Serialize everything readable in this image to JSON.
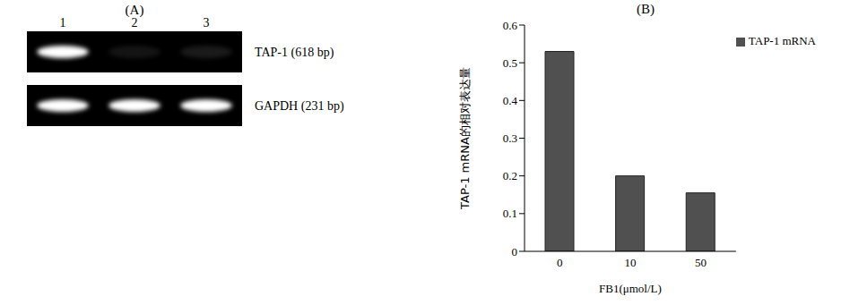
{
  "gel": {
    "title": "(A)",
    "lanes": [
      "1",
      "2",
      "3"
    ],
    "rows": [
      {
        "label": "TAP-1 (618 bp)",
        "intensity": [
          1,
          0.08,
          0.1
        ]
      },
      {
        "label": "GAPDH (231 bp)",
        "intensity": [
          1,
          1,
          1
        ]
      }
    ]
  },
  "chart_data": {
    "type": "bar",
    "title": "(B)",
    "x_label": "FB1(μmol/L)",
    "y_label": "TAP-1 mRNA的相对表达量",
    "categories": [
      "0",
      "10",
      "50"
    ],
    "series": [
      {
        "name": "TAP-1 mRNA",
        "color": "#505050",
        "values": [
          0.53,
          0.2,
          0.155
        ]
      }
    ],
    "ylim": [
      0,
      0.6
    ],
    "yticks": [
      0,
      0.1,
      0.2,
      0.3,
      0.4,
      0.5,
      0.6
    ],
    "grid": false,
    "legend": "upper right"
  }
}
